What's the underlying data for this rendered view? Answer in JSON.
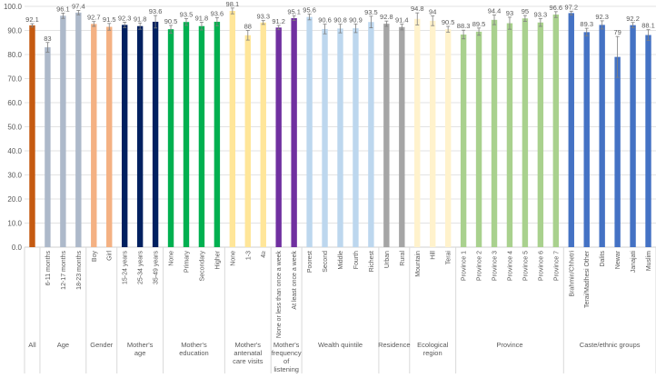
{
  "chart_data": {
    "type": "bar",
    "title": "",
    "xlabel": "",
    "ylabel": "",
    "ylim": [
      0,
      100
    ],
    "yticks": [
      "0.0",
      "10.0",
      "20.0",
      "30.0",
      "40.0",
      "50.0",
      "60.0",
      "70.0",
      "80.0",
      "90.0",
      "100.0"
    ],
    "grid": true,
    "groups": [
      {
        "name": "All",
        "color": "#c55a11",
        "bars": [
          {
            "label": "",
            "value": 92.1,
            "err": 0.7
          }
        ]
      },
      {
        "name": "Age",
        "color": "#adb9ca",
        "bars": [
          {
            "label": "6-11 months",
            "value": 83.0,
            "err": 2.0
          },
          {
            "label": "12-17 months",
            "value": 96.1,
            "err": 1.1
          },
          {
            "label": "18-23 months",
            "value": 97.4,
            "err": 0.9
          }
        ]
      },
      {
        "name": "Gender",
        "color": "#f4b183",
        "bars": [
          {
            "label": "Boy",
            "value": 92.7,
            "err": 1.0
          },
          {
            "label": "Girl",
            "value": 91.5,
            "err": 1.4
          }
        ]
      },
      {
        "name": "Mother's age",
        "color": "#002060",
        "bars": [
          {
            "label": "15-24 years",
            "value": 92.3,
            "err": 1.1
          },
          {
            "label": "25-34 years",
            "value": 91.8,
            "err": 1.3
          },
          {
            "label": "35-49 years",
            "value": 93.6,
            "err": 2.6
          }
        ]
      },
      {
        "name": "Mother's education",
        "color": "#00b050",
        "bars": [
          {
            "label": "None",
            "value": 90.5,
            "err": 1.6
          },
          {
            "label": "Primary",
            "value": 93.5,
            "err": 1.4
          },
          {
            "label": "Secondary",
            "value": 91.8,
            "err": 1.6
          },
          {
            "label": "Higher",
            "value": 93.6,
            "err": 1.7
          }
        ]
      },
      {
        "name": "Mother's antenatal care visits",
        "color": "#ffe699",
        "bars": [
          {
            "label": "None",
            "value": 98.1,
            "err": 1.2
          },
          {
            "label": "1-3",
            "value": 88.0,
            "err": 2.0
          },
          {
            "label": "4≥",
            "value": 93.3,
            "err": 0.8
          }
        ]
      },
      {
        "name": "Mother's frequency of listening to radio",
        "color": "#7030a0",
        "bars": [
          {
            "label": "None or less than once a week",
            "value": 91.2,
            "err": 0.9
          },
          {
            "label": "At least once a week",
            "value": 95.1,
            "err": 1.0
          }
        ]
      },
      {
        "name": "Wealth quintile",
        "color": "#bdd7ee",
        "bars": [
          {
            "label": "Poorest",
            "value": 95.6,
            "err": 1.2
          },
          {
            "label": "Second",
            "value": 90.6,
            "err": 2.0
          },
          {
            "label": "Middle",
            "value": 90.8,
            "err": 1.8
          },
          {
            "label": "Fourth",
            "value": 90.9,
            "err": 1.8
          },
          {
            "label": "Richest",
            "value": 93.5,
            "err": 2.4
          }
        ]
      },
      {
        "name": "Residence",
        "color": "#a5a5a5",
        "bars": [
          {
            "label": "Urban",
            "value": 92.8,
            "err": 1.1
          },
          {
            "label": "Rural",
            "value": 91.4,
            "err": 1.2
          }
        ]
      },
      {
        "name": "Ecological region",
        "color": "#fff2cc",
        "bars": [
          {
            "label": "Mountain",
            "value": 94.8,
            "err": 2.5
          },
          {
            "label": "Hill",
            "value": 94.0,
            "err": 2.0
          },
          {
            "label": "Terai",
            "value": 90.5,
            "err": 1.2
          }
        ]
      },
      {
        "name": "Province",
        "color": "#a9d18e",
        "bars": [
          {
            "label": "Province 1",
            "value": 88.3,
            "err": 1.8
          },
          {
            "label": "Province 2",
            "value": 89.5,
            "err": 1.5
          },
          {
            "label": "Province 3",
            "value": 94.4,
            "err": 2.0
          },
          {
            "label": "Province 4",
            "value": 93.0,
            "err": 2.5
          },
          {
            "label": "Province 5",
            "value": 95.0,
            "err": 1.2
          },
          {
            "label": "Province 6",
            "value": 93.3,
            "err": 1.6
          },
          {
            "label": "Province 7",
            "value": 96.6,
            "err": 1.2
          }
        ]
      },
      {
        "name": "Caste/ethnic groups",
        "color": "#4472c4",
        "bars": [
          {
            "label": "Brahmin/Chhetri",
            "value": 97.2,
            "err": 0.8
          },
          {
            "label": "Terai/Madhesi Other",
            "value": 89.3,
            "err": 1.6
          },
          {
            "label": "Dalits",
            "value": 92.3,
            "err": 1.7
          },
          {
            "label": "Newar",
            "value": 79.0,
            "err": 8.5
          },
          {
            "label": "Janajati",
            "value": 92.2,
            "err": 1.1
          },
          {
            "label": "Muslim",
            "value": 88.1,
            "err": 2.2
          }
        ]
      }
    ]
  }
}
